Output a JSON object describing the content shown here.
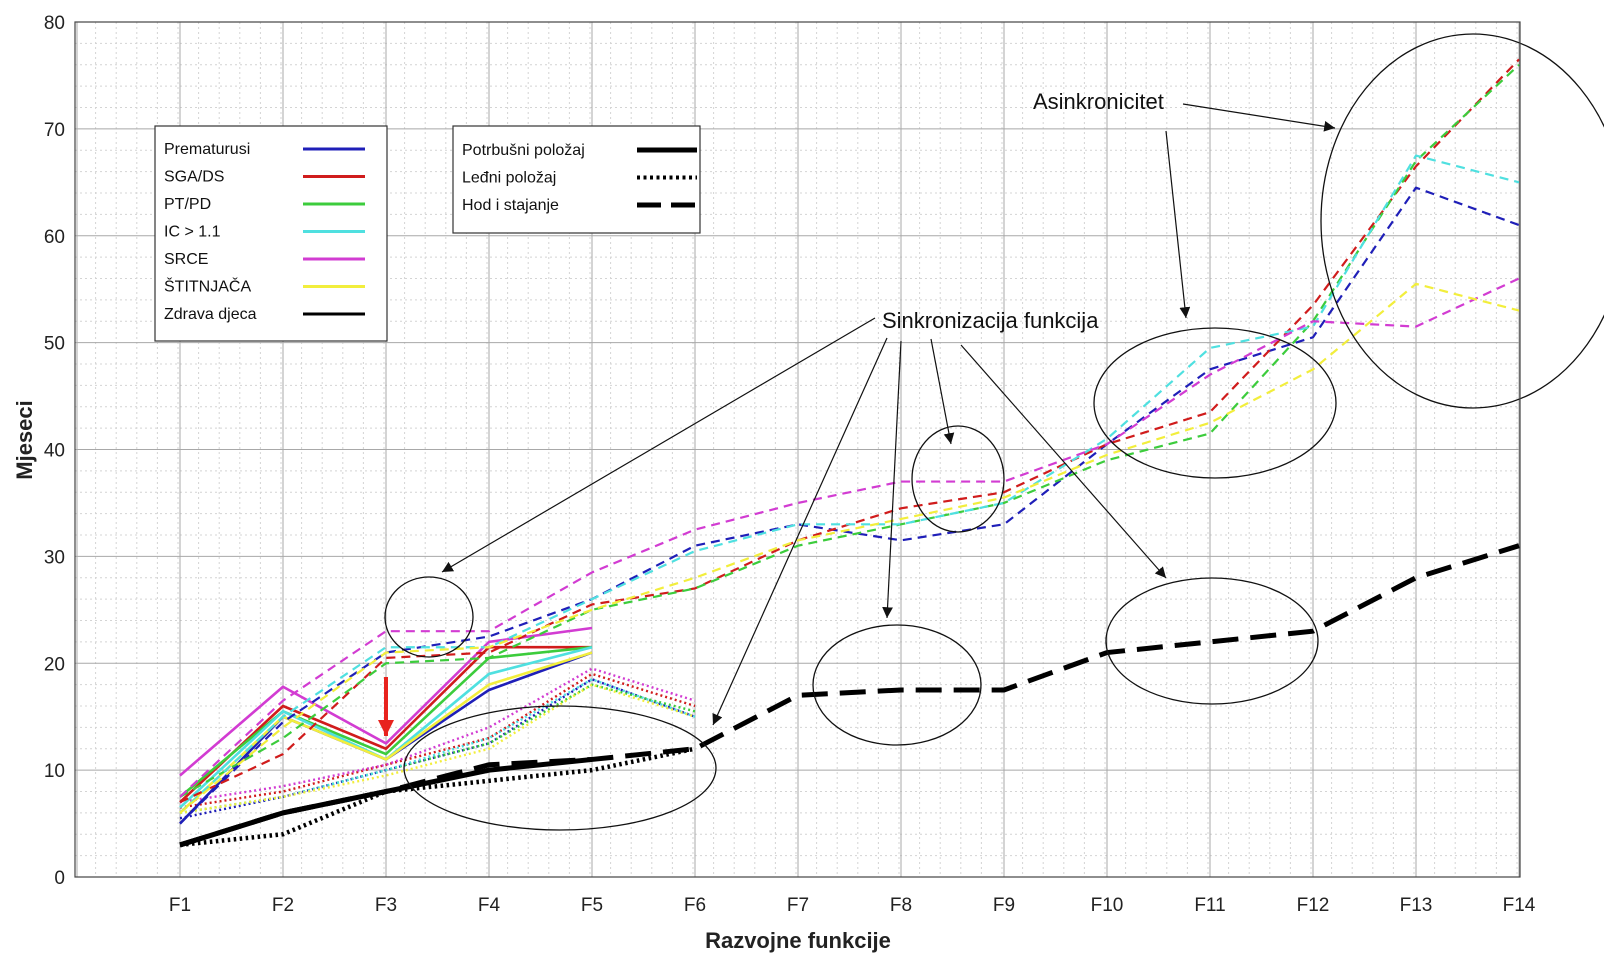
{
  "chart_data": {
    "type": "line",
    "title": "",
    "xlabel": "Razvojne funkcije",
    "ylabel": "Mjeseci",
    "categories": [
      "F1",
      "F2",
      "F3",
      "F4",
      "F5",
      "F6",
      "F7",
      "F8",
      "F9",
      "F10",
      "F11",
      "F12",
      "F13",
      "F14"
    ],
    "ylim": [
      0,
      80
    ],
    "yticks": [
      0,
      10,
      20,
      30,
      40,
      50,
      60,
      70,
      80
    ],
    "grid": true,
    "colors": {
      "Prematurusi": "#1f1fb8",
      "SGA/DS": "#d01c1c",
      "PT/PD": "#3ccc3c",
      "IC > 1.1": "#4fe0e0",
      "SRCE": "#d23cd2",
      "ŠTITNJAČA": "#f2ee3c",
      "Zdrava djeca": "#000000",
      "arrow_red": "#e8231e"
    },
    "legend_groups": [
      {
        "name": "Prematurusi",
        "color": "#1f1fb8"
      },
      {
        "name": "SGA/DS",
        "color": "#d01c1c"
      },
      {
        "name": "PT/PD",
        "color": "#3ccc3c"
      },
      {
        "name": "IC > 1.1",
        "color": "#4fe0e0"
      },
      {
        "name": "SRCE",
        "color": "#d23cd2"
      },
      {
        "name": "ŠTITNJAČA",
        "color": "#f2ee3c"
      },
      {
        "name": "Zdrava djeca",
        "color": "#000000"
      }
    ],
    "legend_styles": [
      {
        "name": "Potrbušni položaj",
        "style": "solid"
      },
      {
        "name": "Leđni položaj",
        "style": "dotted"
      },
      {
        "name": "Hod i stajanje",
        "style": "dashed"
      }
    ],
    "series": [
      {
        "group": "Prematurusi",
        "style": "solid",
        "x": [
          "F1",
          "F2",
          "F3",
          "F4",
          "F5"
        ],
        "values": [
          5,
          15,
          11,
          17.5,
          21
        ]
      },
      {
        "group": "SGA/DS",
        "style": "solid",
        "x": [
          "F1",
          "F2",
          "F3",
          "F4",
          "F5"
        ],
        "values": [
          7,
          16,
          12,
          21.5,
          21.5
        ]
      },
      {
        "group": "PT/PD",
        "style": "solid",
        "x": [
          "F1",
          "F2",
          "F3",
          "F4",
          "F5"
        ],
        "values": [
          7.5,
          15.5,
          11.5,
          20.5,
          21.5
        ]
      },
      {
        "group": "IC > 1.1",
        "style": "solid",
        "x": [
          "F1",
          "F2",
          "F3",
          "F4",
          "F5"
        ],
        "values": [
          6.5,
          15.5,
          11,
          19,
          21.5
        ]
      },
      {
        "group": "SRCE",
        "style": "solid",
        "x": [
          "F1",
          "F2",
          "F3",
          "F4",
          "F5"
        ],
        "values": [
          9.5,
          17.8,
          12.5,
          22,
          23.3
        ]
      },
      {
        "group": "ŠTITNJAČA",
        "style": "solid",
        "x": [
          "F1",
          "F2",
          "F3",
          "F4",
          "F5"
        ],
        "values": [
          6,
          15,
          11,
          18,
          21
        ]
      },
      {
        "group": "Zdrava djeca",
        "style": "solid",
        "x": [
          "F1",
          "F2",
          "F3",
          "F4",
          "F5"
        ],
        "values": [
          3,
          6,
          8,
          10,
          11
        ]
      },
      {
        "group": "Prematurusi",
        "style": "dotted",
        "x": [
          "F1",
          "F2",
          "F3",
          "F4",
          "F5",
          "F6"
        ],
        "values": [
          5.5,
          7.5,
          10,
          12.5,
          18.5,
          15
        ]
      },
      {
        "group": "SGA/DS",
        "style": "dotted",
        "x": [
          "F1",
          "F2",
          "F3",
          "F4",
          "F5",
          "F6"
        ],
        "values": [
          6.5,
          8,
          10.5,
          13,
          19,
          16
        ]
      },
      {
        "group": "PT/PD",
        "style": "dotted",
        "x": [
          "F1",
          "F2",
          "F3",
          "F4",
          "F5",
          "F6"
        ],
        "values": [
          6,
          7.5,
          10,
          12.5,
          18,
          15.5
        ]
      },
      {
        "group": "IC > 1.1",
        "style": "dotted",
        "x": [
          "F1",
          "F2",
          "F3",
          "F4",
          "F5",
          "F6"
        ],
        "values": [
          6,
          7.5,
          10,
          13,
          18.5,
          15
        ]
      },
      {
        "group": "SRCE",
        "style": "dotted",
        "x": [
          "F1",
          "F2",
          "F3",
          "F4",
          "F5",
          "F6"
        ],
        "values": [
          7,
          8.5,
          10.5,
          14,
          19.5,
          16.5
        ]
      },
      {
        "group": "ŠTITNJAČA",
        "style": "dotted",
        "x": [
          "F1",
          "F2",
          "F3",
          "F4",
          "F5",
          "F6"
        ],
        "values": [
          6,
          7.5,
          9.5,
          12,
          18,
          15
        ]
      },
      {
        "group": "Zdrava djeca",
        "style": "dotted",
        "x": [
          "F1",
          "F2",
          "F3",
          "F4",
          "F5",
          "F6"
        ],
        "values": [
          3,
          4,
          8,
          9,
          10,
          12
        ]
      },
      {
        "group": "Prematurusi",
        "style": "dashed",
        "x": [
          "F1",
          "F2",
          "F3",
          "F4",
          "F5",
          "F6",
          "F7",
          "F8",
          "F9",
          "F10",
          "F11",
          "F12",
          "F13",
          "F14"
        ],
        "values": [
          5,
          14.5,
          21,
          22.5,
          26,
          31,
          33,
          31.5,
          33,
          40.5,
          47.5,
          50.5,
          64.5,
          61
        ]
      },
      {
        "group": "SGA/DS",
        "style": "dashed",
        "x": [
          "F1",
          "F2",
          "F3",
          "F4",
          "F5",
          "F6",
          "F7",
          "F8",
          "F9",
          "F10",
          "F11",
          "F12",
          "F13",
          "F14"
        ],
        "values": [
          7,
          11.5,
          20.5,
          21,
          25.5,
          27,
          31.5,
          34.5,
          36,
          40.5,
          43.5,
          53.5,
          66.5,
          76.5
        ]
      },
      {
        "group": "PT/PD",
        "style": "dashed",
        "x": [
          "F1",
          "F2",
          "F3",
          "F4",
          "F5",
          "F6",
          "F7",
          "F8",
          "F9",
          "F10",
          "F11",
          "F12",
          "F13",
          "F14"
        ],
        "values": [
          7.5,
          13,
          20,
          20.5,
          25,
          27,
          31,
          33,
          35,
          39,
          41.5,
          52,
          67,
          76
        ]
      },
      {
        "group": "IC > 1.1",
        "style": "dashed",
        "x": [
          "F1",
          "F2",
          "F3",
          "F4",
          "F5",
          "F6",
          "F7",
          "F8",
          "F9",
          "F10",
          "F11",
          "F12",
          "F13",
          "F14"
        ],
        "values": [
          6,
          15,
          21.5,
          21.5,
          26,
          30.5,
          33,
          33,
          35,
          41,
          49.5,
          51.5,
          67.5,
          65
        ]
      },
      {
        "group": "SRCE",
        "style": "dashed",
        "x": [
          "F1",
          "F2",
          "F3",
          "F4",
          "F5",
          "F6",
          "F7",
          "F8",
          "F9",
          "F10",
          "F11",
          "F12",
          "F13",
          "F14"
        ],
        "values": [
          7.5,
          16.5,
          23,
          23,
          28.5,
          32.5,
          35,
          37,
          37,
          40.5,
          47,
          52,
          51.5,
          56
        ]
      },
      {
        "group": "ŠTITNJAČA",
        "style": "dashed",
        "x": [
          "F1",
          "F2",
          "F3",
          "F4",
          "F5",
          "F6",
          "F7",
          "F8",
          "F9",
          "F10",
          "F11",
          "F12",
          "F13",
          "F14"
        ],
        "values": [
          6,
          14,
          21,
          21.5,
          25,
          28,
          31.5,
          33.5,
          35.5,
          39.5,
          42.5,
          47.5,
          55.5,
          53
        ]
      },
      {
        "group": "Zdrava djeca",
        "style": "dashed",
        "x": [
          "F1",
          "F2",
          "F3",
          "F4",
          "F5",
          "F6",
          "F7",
          "F8",
          "F9",
          "F10",
          "F11",
          "F12",
          "F13",
          "F14"
        ],
        "values": [
          3,
          6,
          8,
          10.5,
          11,
          12,
          17,
          17.5,
          17.5,
          21,
          22,
          23,
          28,
          31
        ]
      }
    ],
    "annotations": {
      "asinkronicitet": "Asinkronicitet",
      "sinkronizacija": "Sinkronizacija funkcija"
    }
  }
}
